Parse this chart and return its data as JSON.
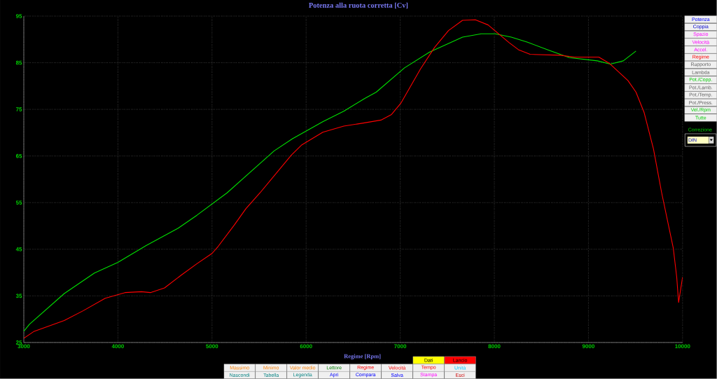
{
  "chart_data": {
    "type": "line",
    "title": "Potenza alla ruota corretta [Cv]",
    "xlabel": "Regime [Rpm]",
    "xlim": [
      3000,
      10000
    ],
    "xticks": [
      3000,
      4000,
      5000,
      6000,
      7000,
      8000,
      9000,
      10000
    ],
    "ylim": [
      25,
      95
    ],
    "yticks": [
      25,
      35,
      45,
      55,
      65,
      75,
      85,
      95
    ],
    "grid": true,
    "marker": "none",
    "line_style": "solid",
    "series": [
      {
        "color": "#00e000",
        "x": [
          3000,
          3060,
          3430,
          3750,
          4000,
          4300,
          4640,
          4840,
          5000,
          5160,
          5660,
          5855,
          6180,
          6400,
          6620,
          6745,
          7045,
          7313,
          7662,
          7860,
          8008,
          8180,
          8353,
          8575,
          8798,
          9095,
          9233,
          9370,
          9505
        ],
        "values": [
          27.4,
          28.9,
          35.5,
          39.9,
          42.2,
          45.8,
          49.5,
          52.3,
          54.7,
          57.1,
          66.1,
          68.7,
          72.4,
          74.6,
          77.3,
          78.7,
          83.9,
          87.3,
          90.5,
          91.2,
          91.2,
          90.5,
          89.4,
          87.7,
          86.1,
          85.4,
          84.7,
          85.4,
          87.5
        ]
      },
      {
        "color": "#ff0000",
        "x": [
          3000,
          3110,
          3430,
          3630,
          3865,
          4075,
          4250,
          4345,
          4495,
          4670,
          4840,
          5000,
          5065,
          5237,
          5360,
          5510,
          5843,
          5955,
          6177,
          6400,
          6620,
          6795,
          6907,
          7006,
          7216,
          7365,
          7513,
          7662,
          7798,
          7934,
          8157,
          8256,
          8380,
          8701,
          8850,
          9110,
          9220,
          9419,
          9505,
          9592,
          9691,
          9778,
          9901,
          9938,
          9958,
          10000
        ],
        "values": [
          25.9,
          27.4,
          29.7,
          31.8,
          34.5,
          35.7,
          35.9,
          35.7,
          36.7,
          39.4,
          41.9,
          44.1,
          45.6,
          50.2,
          53.7,
          57.1,
          65.2,
          67.4,
          70.1,
          71.4,
          72.1,
          72.7,
          73.9,
          76.3,
          83.7,
          88.3,
          91.9,
          94.1,
          94.2,
          93.1,
          89.3,
          87.8,
          86.8,
          86.6,
          86.2,
          86.2,
          84.9,
          81.2,
          78.7,
          74.3,
          66.5,
          57.1,
          45.3,
          39.0,
          33.6,
          39.0
        ]
      }
    ],
    "annotations": [
      "Potenza",
      "Coppia",
      "Spazio",
      "Velocità",
      "Accel.",
      "Regime",
      "Rapporto",
      "Lambda",
      "Pot./Copp.",
      "Pot./Lamb.",
      "Pot./Temp.",
      "Pot./Press.",
      "Vel./Rpm",
      "Tutte",
      "Correzione",
      "DIN",
      "Dati",
      "Lancio",
      "Massimo",
      "Minimo",
      "Valor medio",
      "Lettore",
      "Regime",
      "Velocità",
      "Tempo",
      "Unità",
      "Nascondi",
      "Tabella",
      "Legenda",
      "Apri",
      "Compara",
      "Salva",
      "Stampa",
      "Esci"
    ]
  }
}
